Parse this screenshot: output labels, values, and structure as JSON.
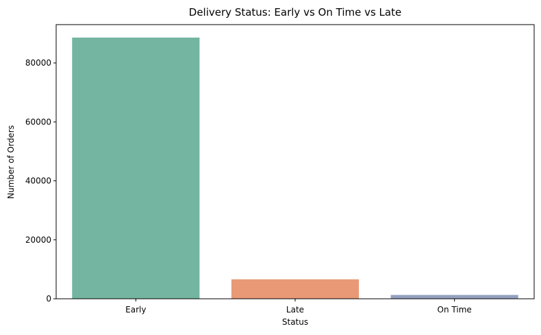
{
  "chart_data": {
    "type": "bar",
    "title": "Delivery Status: Early vs On Time vs Late",
    "xlabel": "Status",
    "ylabel": "Number of Orders",
    "categories": [
      "Early",
      "Late",
      "On Time"
    ],
    "values": [
      88600,
      6600,
      1300
    ],
    "colors": [
      "#73b5a0",
      "#e99976",
      "#94a0bf"
    ],
    "ylim": [
      0,
      93000
    ],
    "yticks": [
      0,
      20000,
      40000,
      60000,
      80000
    ],
    "grid": false
  }
}
